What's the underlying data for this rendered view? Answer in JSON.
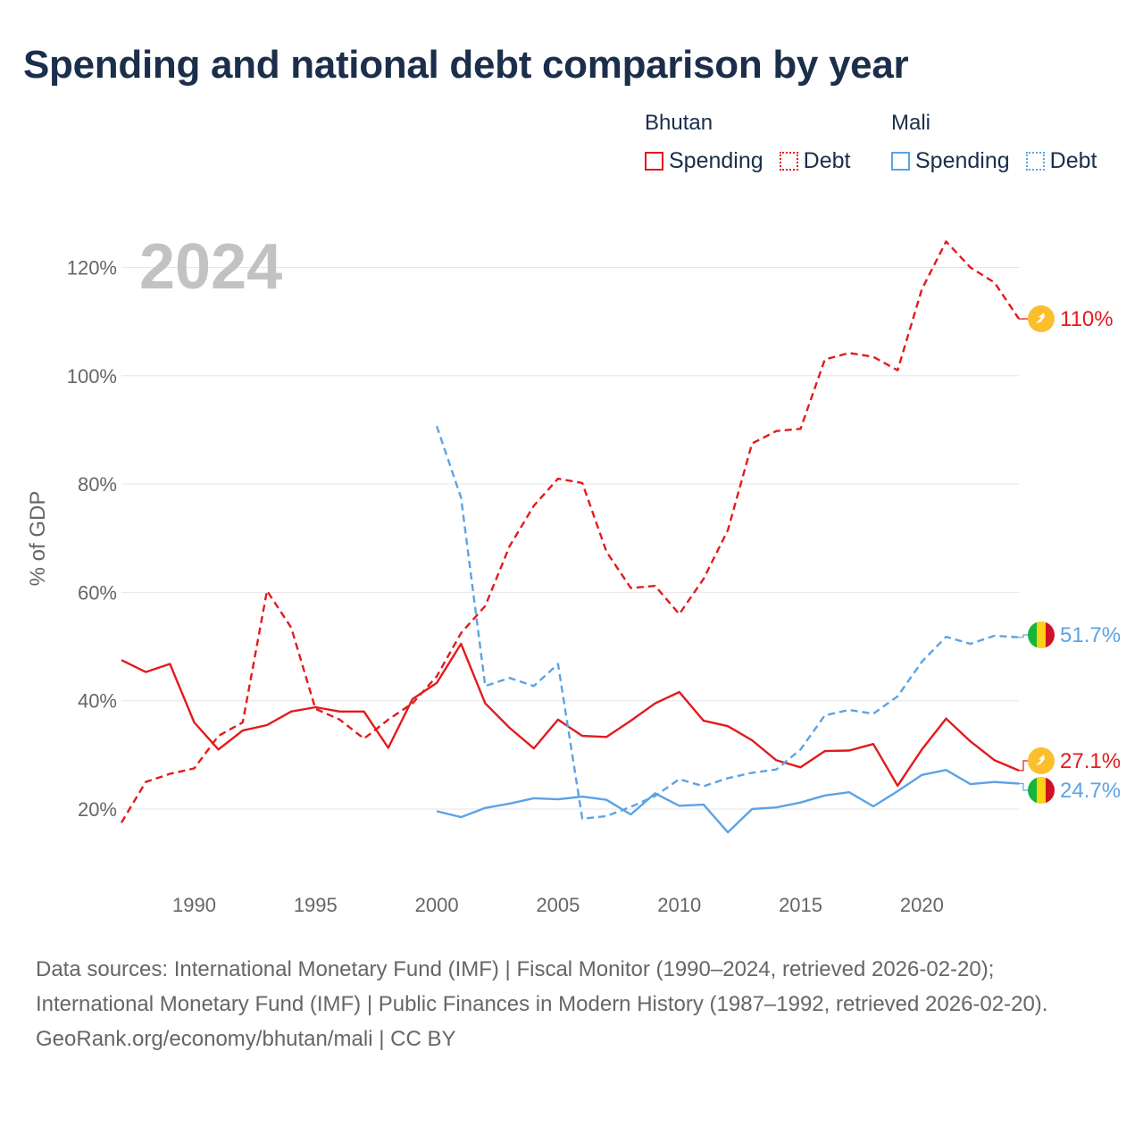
{
  "title": "Spending and national debt comparison by year",
  "year_label": "2024",
  "legend": {
    "groups": [
      {
        "name": "Bhutan",
        "color": "#e31a1c",
        "items": [
          {
            "label": "Spending",
            "style": "solid"
          },
          {
            "label": "Debt",
            "style": "dotted"
          }
        ]
      },
      {
        "name": "Mali",
        "color": "#5ba3e6",
        "items": [
          {
            "label": "Spending",
            "style": "solid"
          },
          {
            "label": "Debt",
            "style": "dotted"
          }
        ]
      }
    ]
  },
  "chart_data": {
    "type": "line",
    "title": "Spending and national debt comparison by year",
    "xlabel": "",
    "ylabel": "% of GDP",
    "xlim": [
      1987,
      2024
    ],
    "ylim": [
      12,
      132
    ],
    "x_ticks": [
      1990,
      1995,
      2000,
      2005,
      2010,
      2015,
      2020
    ],
    "y_ticks": [
      20,
      40,
      60,
      80,
      100,
      120
    ],
    "y_tick_labels": [
      "20%",
      "40%",
      "60%",
      "80%",
      "100%",
      "120%"
    ],
    "grid": true,
    "series": [
      {
        "name": "Bhutan Debt",
        "country": "Bhutan",
        "color": "#e31a1c",
        "dashed": true,
        "x": [
          1987,
          1988,
          1989,
          1990,
          1991,
          1992,
          1993,
          1994,
          1995,
          1996,
          1997,
          1998,
          1999,
          2000,
          2001,
          2002,
          2003,
          2004,
          2005,
          2006,
          2007,
          2008,
          2009,
          2010,
          2011,
          2012,
          2013,
          2014,
          2015,
          2016,
          2017,
          2018,
          2019,
          2020,
          2021,
          2022,
          2023,
          2024
        ],
        "y": [
          17.5,
          25,
          26.5,
          27.5,
          33.5,
          36,
          60.3,
          53.5,
          38.5,
          36.5,
          33,
          36.5,
          39.5,
          44.5,
          52.5,
          57.5,
          68.5,
          76,
          81,
          80.2,
          67.5,
          60.8,
          61.2,
          56,
          62.5,
          71.5,
          87.5,
          89.8,
          90.2,
          103,
          104.2,
          103.5,
          101,
          116,
          124.8,
          120,
          117.2,
          110.5
        ],
        "end_label": "110%"
      },
      {
        "name": "Bhutan Spending",
        "country": "Bhutan",
        "color": "#e31a1c",
        "dashed": false,
        "x": [
          1987,
          1988,
          1989,
          1990,
          1991,
          1992,
          1993,
          1994,
          1995,
          1996,
          1997,
          1998,
          1999,
          2000,
          2001,
          2002,
          2003,
          2004,
          2005,
          2006,
          2007,
          2008,
          2009,
          2010,
          2011,
          2012,
          2013,
          2014,
          2015,
          2016,
          2017,
          2018,
          2019,
          2020,
          2021,
          2022,
          2023,
          2024
        ],
        "y": [
          47.5,
          45.3,
          46.8,
          36,
          31,
          34.5,
          35.5,
          38,
          38.8,
          38,
          38,
          31.3,
          40.3,
          43.3,
          50.5,
          39.5,
          35,
          31.2,
          36.5,
          33.5,
          33.3,
          36.3,
          39.5,
          41.6,
          36.3,
          35.3,
          32.7,
          29,
          27.7,
          30.7,
          30.8,
          32,
          24.3,
          31,
          36.7,
          32.5,
          29,
          27.1
        ],
        "end_label": "27.1%"
      },
      {
        "name": "Mali Debt",
        "country": "Mali",
        "color": "#5ba3e6",
        "dashed": true,
        "x": [
          2000,
          2001,
          2002,
          2003,
          2004,
          2005,
          2006,
          2007,
          2008,
          2009,
          2010,
          2011,
          2012,
          2013,
          2014,
          2015,
          2016,
          2017,
          2018,
          2019,
          2020,
          2021,
          2022,
          2023,
          2024
        ],
        "y": [
          90.7,
          77.5,
          42.7,
          44.2,
          42.7,
          46.8,
          18.2,
          18.7,
          20.4,
          22.4,
          25.5,
          24.2,
          25.7,
          26.7,
          27.3,
          31,
          37.3,
          38.3,
          37.6,
          40.8,
          47.2,
          51.8,
          50.5,
          52,
          51.7
        ],
        "end_label": "51.7%"
      },
      {
        "name": "Mali Spending",
        "country": "Mali",
        "color": "#5ba3e6",
        "dashed": false,
        "x": [
          2000,
          2001,
          2002,
          2003,
          2004,
          2005,
          2006,
          2007,
          2008,
          2009,
          2010,
          2011,
          2012,
          2013,
          2014,
          2015,
          2016,
          2017,
          2018,
          2019,
          2020,
          2021,
          2022,
          2023,
          2024
        ],
        "y": [
          19.6,
          18.5,
          20.2,
          21,
          22,
          21.8,
          22.3,
          21.7,
          19,
          22.9,
          20.6,
          20.8,
          15.7,
          20,
          20.3,
          21.2,
          22.5,
          23.1,
          20.5,
          23.3,
          26.3,
          27.2,
          24.6,
          25,
          24.7
        ],
        "end_label": "24.7%"
      }
    ]
  },
  "footer": {
    "sources": "Data sources: International Monetary Fund (IMF) | Fiscal Monitor (1990–2024, retrieved 2026-02-20); International Monetary Fund (IMF) | Public Finances in Modern History (1987–1992, retrieved 2026-02-20).",
    "credit": "GeoRank.org/economy/bhutan/mali | CC BY"
  }
}
